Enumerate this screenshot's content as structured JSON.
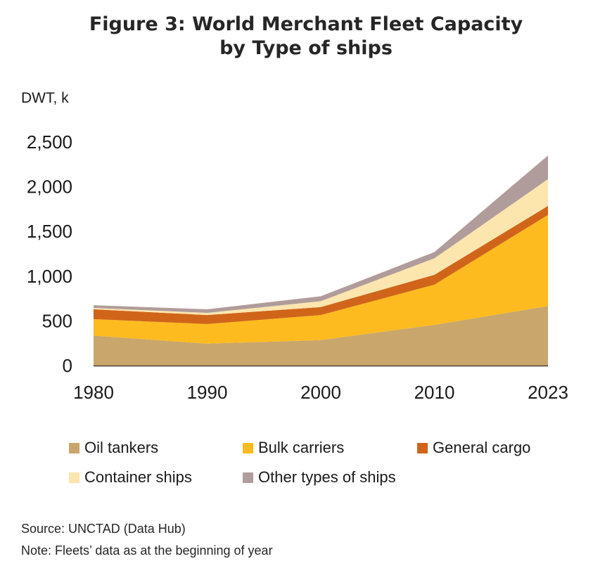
{
  "title": {
    "line1": "Figure 3: World Merchant Fleet Capacity",
    "line2": "by Type of ships"
  },
  "unit_label": "DWT, k",
  "notes": {
    "source": "Source: UNCTAD (Data Hub)",
    "note": "Note: Fleets’ data as at the beginning of year"
  },
  "chart_data": {
    "type": "area",
    "stacked": true,
    "x": [
      "1980",
      "1990",
      "2000",
      "2010",
      "2023"
    ],
    "ylabel": "DWT, k",
    "ylim": [
      0,
      2500
    ],
    "yticks": [
      "0",
      "500",
      "1,000",
      "1,500",
      "2,000",
      "2,500"
    ],
    "grid": false,
    "legend_position": "bottom",
    "series": [
      {
        "name": "Oil tankers",
        "color": "#c9a66b",
        "values": [
          335,
          245,
          285,
          455,
          665
        ]
      },
      {
        "name": "Bulk carriers",
        "color": "#fdbb1f",
        "values": [
          185,
          220,
          280,
          450,
          1020
        ]
      },
      {
        "name": "General cargo",
        "color": "#d0651a",
        "values": [
          110,
          100,
          90,
          110,
          100
        ]
      },
      {
        "name": "Container ships",
        "color": "#fde5ae",
        "values": [
          15,
          25,
          65,
          185,
          300
        ]
      },
      {
        "name": "Other types of ships",
        "color": "#b09c9a",
        "values": [
          30,
          40,
          55,
          70,
          265
        ]
      }
    ]
  }
}
